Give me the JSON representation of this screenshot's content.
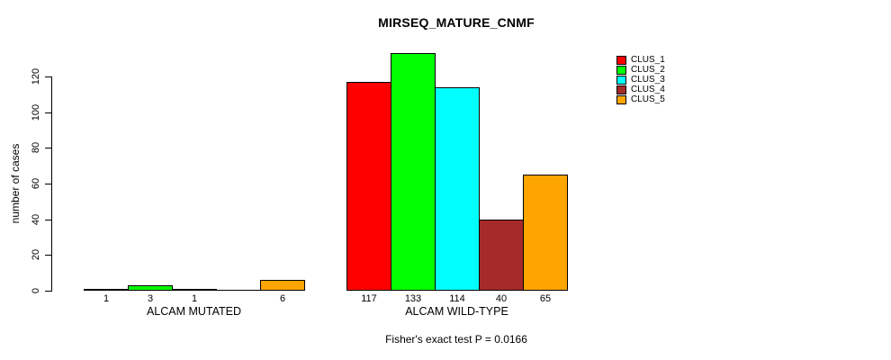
{
  "chart_data": {
    "type": "bar",
    "title": "MIRSEQ_MATURE_CNMF",
    "ylabel": "number of cases",
    "xlabel": "",
    "yticks": [
      0,
      20,
      40,
      60,
      80,
      100,
      120
    ],
    "ylim": [
      0,
      140
    ],
    "grid": false,
    "legend_position": "top-right",
    "legend": [
      {
        "label": "CLUS_1",
        "color": "#FF0000"
      },
      {
        "label": "CLUS_2",
        "color": "#00FF00"
      },
      {
        "label": "CLUS_3",
        "color": "#00FFFF"
      },
      {
        "label": "CLUS_4",
        "color": "#A52A2A"
      },
      {
        "label": "CLUS_5",
        "color": "#FFA500"
      }
    ],
    "groups": [
      {
        "label": "ALCAM MUTATED",
        "values": [
          1,
          3,
          1,
          0,
          6
        ],
        "bar_labels": [
          "1",
          "3",
          "1",
          "",
          "6"
        ]
      },
      {
        "label": "ALCAM WILD-TYPE",
        "values": [
          117,
          133,
          114,
          40,
          65
        ],
        "bar_labels": [
          "117",
          "133",
          "114",
          "40",
          "65"
        ]
      }
    ],
    "annotation": "Fisher's exact test P = 0.0166"
  }
}
